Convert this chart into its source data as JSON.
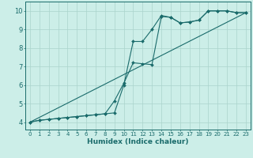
{
  "xlabel": "Humidex (Indice chaleur)",
  "ylabel": "",
  "bg_color": "#cceee8",
  "line_color": "#1a6b6b",
  "grid_color": "#aad4cc",
  "xlim": [
    -0.5,
    23.5
  ],
  "ylim": [
    3.6,
    10.5
  ],
  "xticks": [
    0,
    1,
    2,
    3,
    4,
    5,
    6,
    7,
    8,
    9,
    10,
    11,
    12,
    13,
    14,
    15,
    16,
    17,
    18,
    19,
    20,
    21,
    22,
    23
  ],
  "yticks": [
    4,
    5,
    6,
    7,
    8,
    9,
    10
  ],
  "line1_x": [
    0,
    1,
    2,
    3,
    4,
    5,
    6,
    7,
    8,
    9,
    10,
    11,
    12,
    13,
    14,
    15,
    16,
    17,
    18,
    19,
    20,
    21,
    22,
    23
  ],
  "line1_y": [
    4.0,
    4.1,
    4.15,
    4.2,
    4.25,
    4.3,
    4.35,
    4.4,
    4.45,
    4.5,
    6.0,
    8.35,
    8.35,
    9.0,
    9.75,
    9.65,
    9.35,
    9.4,
    9.5,
    10.0,
    10.0,
    10.0,
    9.9,
    9.9
  ],
  "line2_x": [
    0,
    1,
    2,
    3,
    4,
    5,
    6,
    7,
    8,
    9,
    10,
    11,
    12,
    13,
    14,
    15,
    16,
    17,
    18,
    19,
    20,
    21,
    22,
    23
  ],
  "line2_y": [
    4.0,
    4.1,
    4.15,
    4.2,
    4.25,
    4.3,
    4.35,
    4.4,
    4.45,
    5.15,
    6.1,
    7.2,
    7.15,
    7.1,
    9.7,
    9.65,
    9.35,
    9.4,
    9.5,
    10.0,
    10.0,
    10.0,
    9.9,
    9.9
  ],
  "line3_x": [
    0,
    23
  ],
  "line3_y": [
    4.0,
    9.9
  ]
}
